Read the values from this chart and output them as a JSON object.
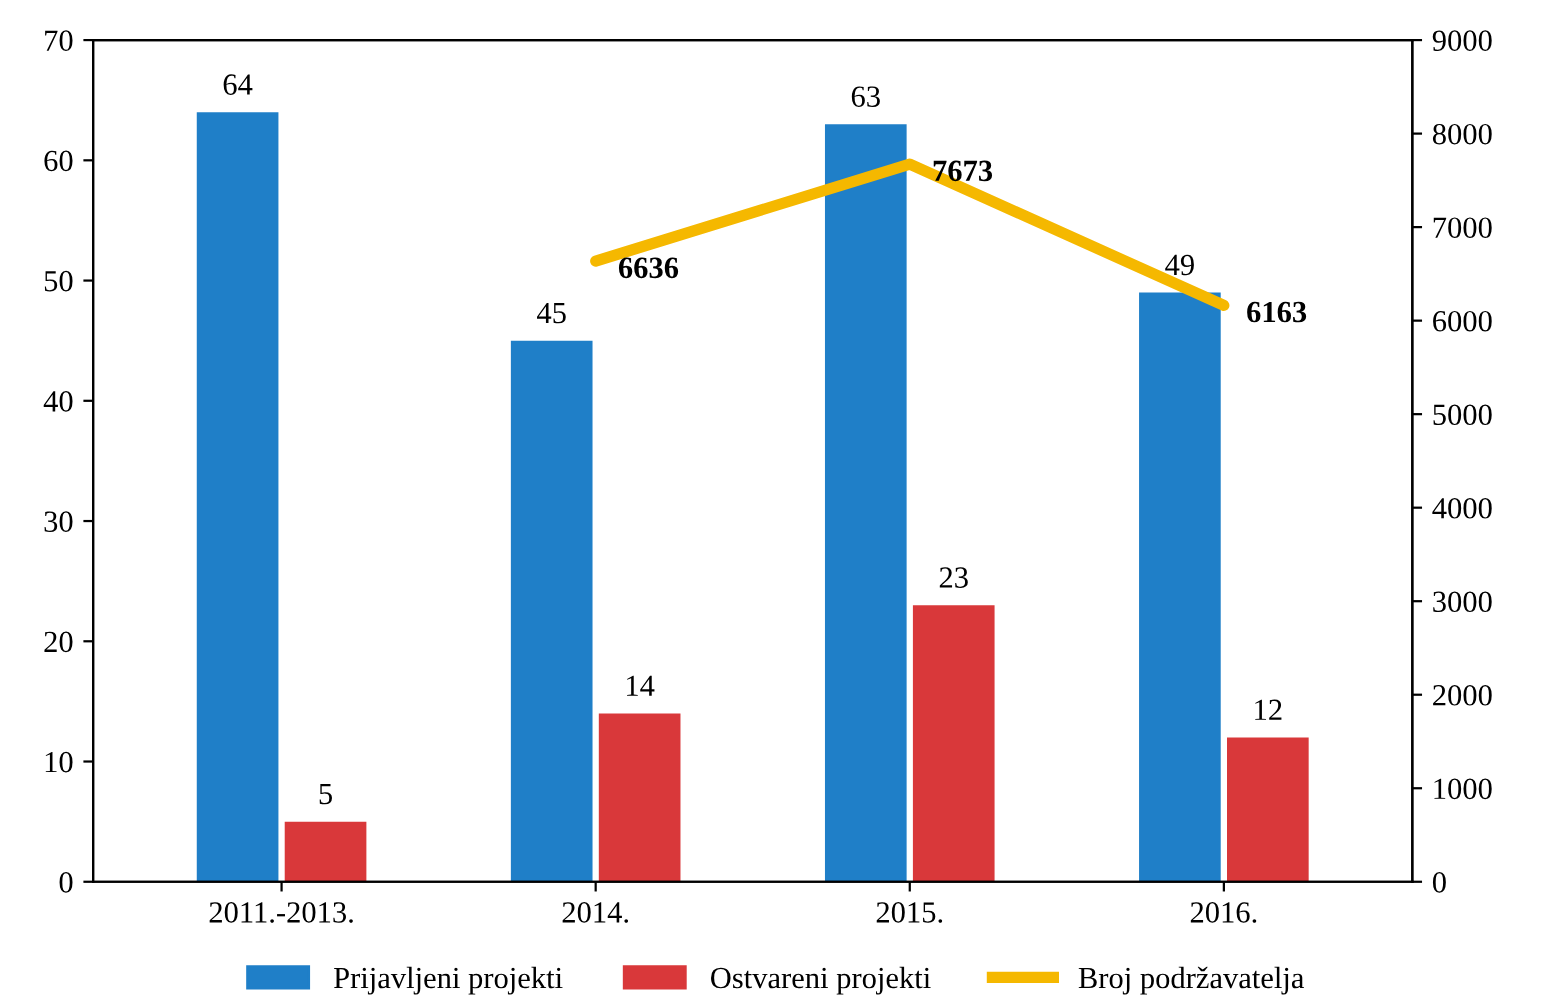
{
  "chart_data": {
    "type": "bar",
    "categories": [
      "2011.-2013.",
      "2014.",
      "2015.",
      "2016."
    ],
    "series": [
      {
        "name": "Prijavljeni projekti",
        "color": "#1f7fc8",
        "values": [
          64,
          45,
          63,
          49
        ]
      },
      {
        "name": "Ostvareni projekti",
        "color": "#d9383a",
        "values": [
          5,
          14,
          23,
          12
        ]
      },
      {
        "name": "Broj podržavatelja",
        "type": "line",
        "axis": "y2",
        "color": "#f5b800",
        "values": [
          null,
          6636,
          7673,
          6163
        ]
      }
    ],
    "ylim": [
      0,
      70
    ],
    "yticks": [
      0,
      10,
      20,
      30,
      40,
      50,
      60,
      70
    ],
    "y2lim": [
      0,
      9000
    ],
    "y2ticks": [
      0,
      1000,
      2000,
      3000,
      4000,
      5000,
      6000,
      7000,
      8000,
      9000
    ],
    "data_labels": true,
    "legend": "bottom",
    "grid": false
  }
}
